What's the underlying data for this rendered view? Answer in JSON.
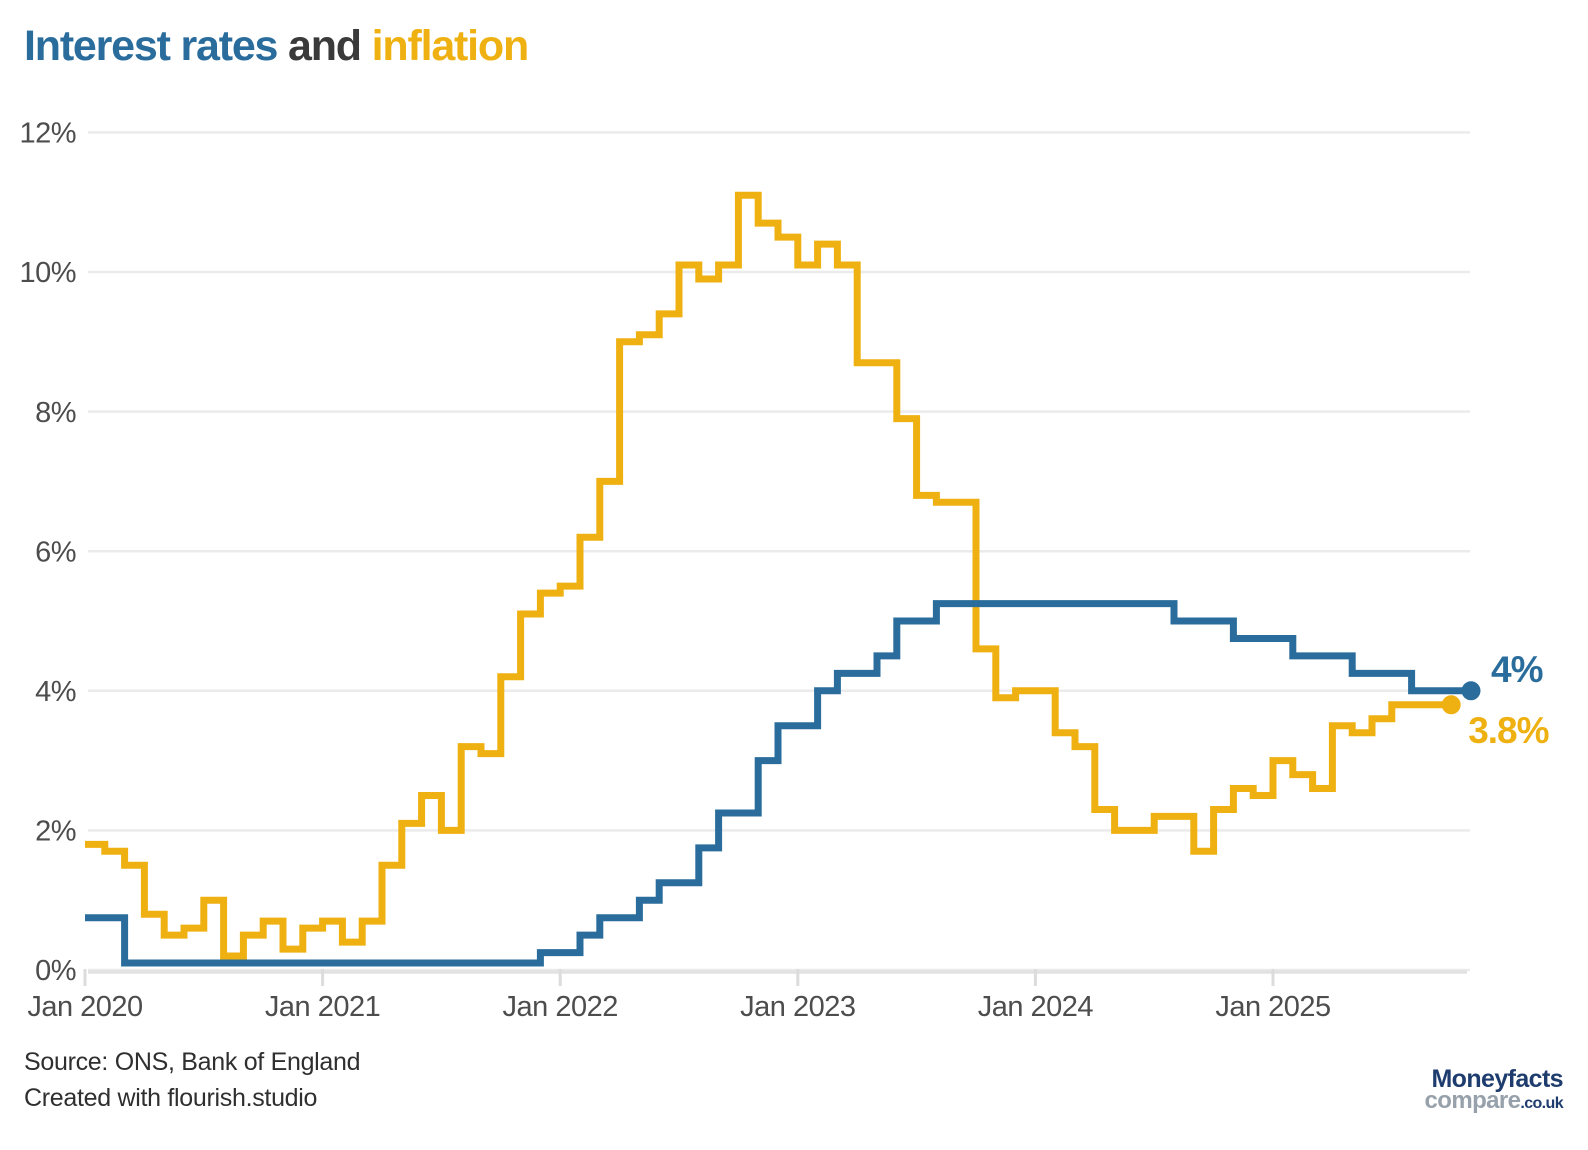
{
  "title": {
    "interest": "Interest rates",
    "and_word": "and",
    "inflation": "inflation"
  },
  "colors": {
    "interest": "#2A6D9C",
    "inflation": "#EFB112",
    "title_and": "#3A3A3A",
    "gridline": "#EBEBEB",
    "axis": "#E2E2E2",
    "tick": "#DCDCDC",
    "tick_label": "#4D4D4D",
    "logo_navy": "#1E3D6E",
    "logo_gray": "#97A1AB"
  },
  "chart_data": {
    "type": "line",
    "subtype": "step-after",
    "title": "Interest rates and inflation",
    "xlabel": "",
    "ylabel": "",
    "ylim": [
      0,
      12
    ],
    "grid": "horizontal",
    "legend_position": "title-colored-words",
    "x_unit": "month",
    "x_start": "Jan 2020",
    "y_ticks": [
      {
        "value": 0,
        "label": "0%"
      },
      {
        "value": 2,
        "label": "2%"
      },
      {
        "value": 4,
        "label": "4%"
      },
      {
        "value": 6,
        "label": "6%"
      },
      {
        "value": 8,
        "label": "8%"
      },
      {
        "value": 10,
        "label": "10%"
      },
      {
        "value": 12,
        "label": "12%"
      }
    ],
    "x_ticks": [
      {
        "month_index": 0,
        "label": "Jan 2020"
      },
      {
        "month_index": 12,
        "label": "Jan 2021"
      },
      {
        "month_index": 24,
        "label": "Jan 2022"
      },
      {
        "month_index": 36,
        "label": "Jan 2023"
      },
      {
        "month_index": 48,
        "label": "Jan 2024"
      },
      {
        "month_index": 60,
        "label": "Jan 2025"
      }
    ],
    "series": [
      {
        "id": "inflation",
        "name": "Inflation",
        "color": "#EFB112",
        "end_label": "3.8%",
        "first_month": "Jan 2020",
        "last_month": "Sep 2025",
        "values": [
          1.8,
          1.7,
          1.5,
          0.8,
          0.5,
          0.6,
          1.0,
          0.2,
          0.5,
          0.7,
          0.3,
          0.6,
          0.7,
          0.4,
          0.7,
          1.5,
          2.1,
          2.5,
          2.0,
          3.2,
          3.1,
          4.2,
          5.1,
          5.4,
          5.5,
          6.2,
          7.0,
          9.0,
          9.1,
          9.4,
          10.1,
          9.9,
          10.1,
          11.1,
          10.7,
          10.5,
          10.1,
          10.4,
          10.1,
          8.7,
          8.7,
          7.9,
          6.8,
          6.7,
          6.7,
          4.6,
          3.9,
          4.0,
          4.0,
          3.4,
          3.2,
          2.3,
          2.0,
          2.0,
          2.2,
          2.2,
          1.7,
          2.3,
          2.6,
          2.5,
          3.0,
          2.8,
          2.6,
          3.5,
          3.4,
          3.6,
          3.8,
          3.8,
          3.8
        ]
      },
      {
        "id": "interest-rates",
        "name": "Interest rates",
        "color": "#2A6D9C",
        "end_label": "4%",
        "first_month": "Jan 2020",
        "last_month": "Oct 2025",
        "values": [
          0.75,
          0.75,
          0.1,
          0.1,
          0.1,
          0.1,
          0.1,
          0.1,
          0.1,
          0.1,
          0.1,
          0.1,
          0.1,
          0.1,
          0.1,
          0.1,
          0.1,
          0.1,
          0.1,
          0.1,
          0.1,
          0.1,
          0.1,
          0.25,
          0.25,
          0.5,
          0.75,
          0.75,
          1.0,
          1.25,
          1.25,
          1.75,
          2.25,
          2.25,
          3.0,
          3.5,
          3.5,
          4.0,
          4.25,
          4.25,
          4.5,
          5.0,
          5.0,
          5.25,
          5.25,
          5.25,
          5.25,
          5.25,
          5.25,
          5.25,
          5.25,
          5.25,
          5.25,
          5.25,
          5.25,
          5.0,
          5.0,
          5.0,
          4.75,
          4.75,
          4.75,
          4.5,
          4.5,
          4.5,
          4.25,
          4.25,
          4.25,
          4.0,
          4.0,
          4.0
        ]
      }
    ]
  },
  "footer": {
    "source": "Source: ONS, Bank of England",
    "created": "Created with flourish.studio"
  },
  "logo": {
    "name": "Moneyfacts",
    "compare": "compare",
    "tld": ".co.uk"
  }
}
